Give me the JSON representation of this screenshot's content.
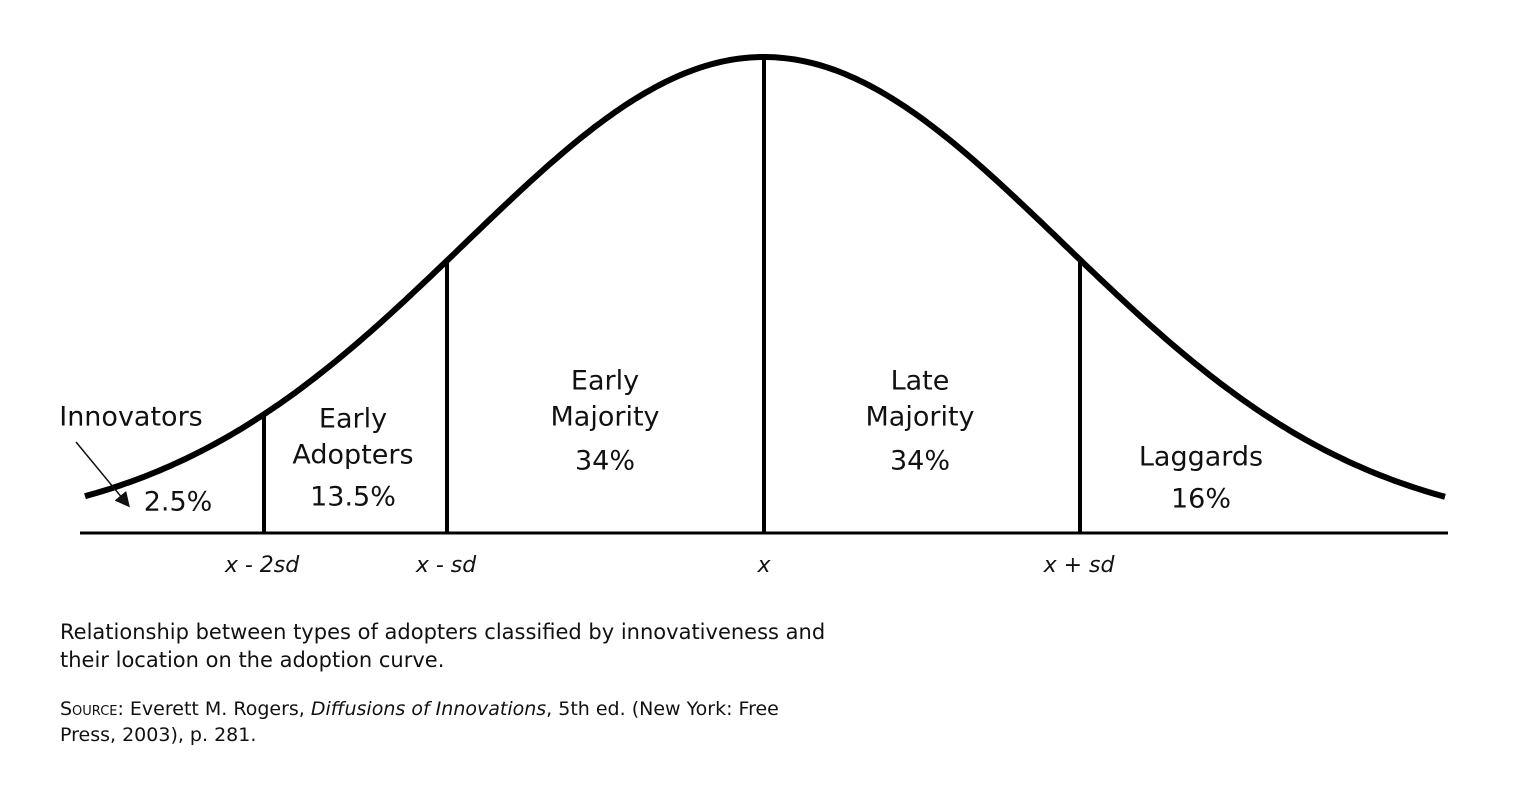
{
  "segments": [
    {
      "label": [
        "Innovators"
      ],
      "share": "2.5%"
    },
    {
      "label": [
        "Early",
        "Adopters"
      ],
      "share": "13.5%"
    },
    {
      "label": [
        "Early",
        "Majority"
      ],
      "share": "34%"
    },
    {
      "label": [
        "Late",
        "Majority"
      ],
      "share": "34%"
    },
    {
      "label": [
        "Laggards"
      ],
      "share": "16%"
    }
  ],
  "axis_labels": [
    "x - 2sd",
    "x - sd",
    "x",
    "x + sd"
  ],
  "caption": "Relationship between types of adopters classified by innovativeness and their location on the adoption curve.",
  "source": {
    "prefix": "Source",
    "author": ": Everett M. Rogers, ",
    "work": "Diffusions of Innovations",
    "details": ", 5th ed. (New York: Free Press, 2003), p. 281."
  }
}
